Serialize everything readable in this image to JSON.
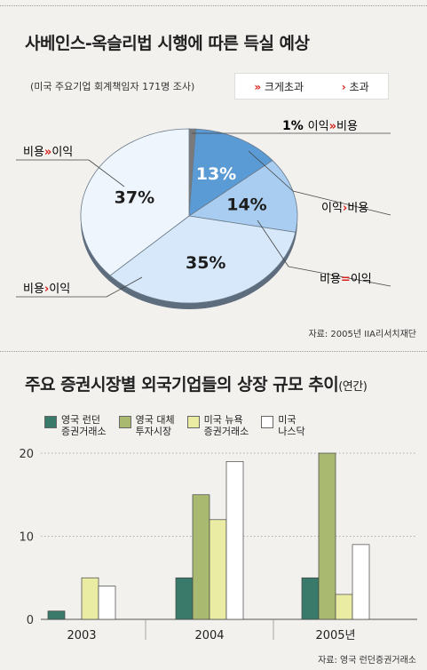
{
  "pie": {
    "title": "사베인스-옥슬리법 시행에 따른 득실 예상",
    "subtitle": "(미국 주요기업 회계책임자 171명 조사)",
    "legend_strong": "크게초과",
    "legend_weak": "초과",
    "source": "자료: 2005년 IIA리서치재단",
    "slices": [
      {
        "label_a": "비용",
        "label_b": "이익",
        "sign": "»",
        "value_text": "1%",
        "value": 1,
        "color": "#7a7a7a"
      },
      {
        "label_a": "이익",
        "label_b": "비용",
        "sign": "›",
        "value_text": "13%",
        "value": 13,
        "color": "#5b9bd5"
      },
      {
        "label_a": "이익",
        "label_b": "비용",
        "sign": "›",
        "value_text": "14%",
        "value": 14,
        "color": "#a9cdf0"
      },
      {
        "label_a": "비용",
        "label_b": "이익",
        "sign": "=",
        "value_text": "35%",
        "value": 35,
        "color": "#d6e8fa"
      },
      {
        "label_a": "비용",
        "label_b": "이익",
        "sign": "›",
        "value_text": "37%",
        "value": 37,
        "color": "#eef5fc"
      }
    ],
    "outer_labels": {
      "one": {
        "a": "이익",
        "b": "비용"
      },
      "two": {
        "a": "이익",
        "b": "비용"
      },
      "three": {
        "a": "비용",
        "b": "이익"
      },
      "four": {
        "a": "비용",
        "b": "이익"
      },
      "five": {
        "a": "비용",
        "b": "이익"
      }
    }
  },
  "bars": {
    "title": "주요 증권시장별 외국기업들의 상장 규모 추이",
    "title_unit": "(연간)",
    "source": "자료: 영국 런던증권거래소",
    "chart_data": {
      "type": "bar",
      "categories": [
        "2003",
        "2004",
        "2005년"
      ],
      "series": [
        {
          "name": "영국 런던 증권거래소",
          "color": "#3a7a6a",
          "values": [
            1,
            5,
            5
          ]
        },
        {
          "name": "영국 대체 투자시장",
          "color": "#a9b96f",
          "values": [
            0,
            15,
            20
          ]
        },
        {
          "name": "미국 뉴욕 증권거래소",
          "color": "#eaeca3",
          "values": [
            5,
            12,
            3
          ]
        },
        {
          "name": "미국 나스닥",
          "color": "#ffffff",
          "values": [
            4,
            19,
            9
          ]
        }
      ],
      "ylim": [
        0,
        20
      ],
      "yticks": [
        "0",
        "10",
        "20"
      ]
    },
    "legend": [
      {
        "line1": "영국 런던",
        "line2": "증권거래소"
      },
      {
        "line1": "영국 대체",
        "line2": "투자시장"
      },
      {
        "line1": "미국 뉴욕",
        "line2": "증권거래소"
      },
      {
        "line1": "미국",
        "line2": "나스닥"
      }
    ]
  }
}
